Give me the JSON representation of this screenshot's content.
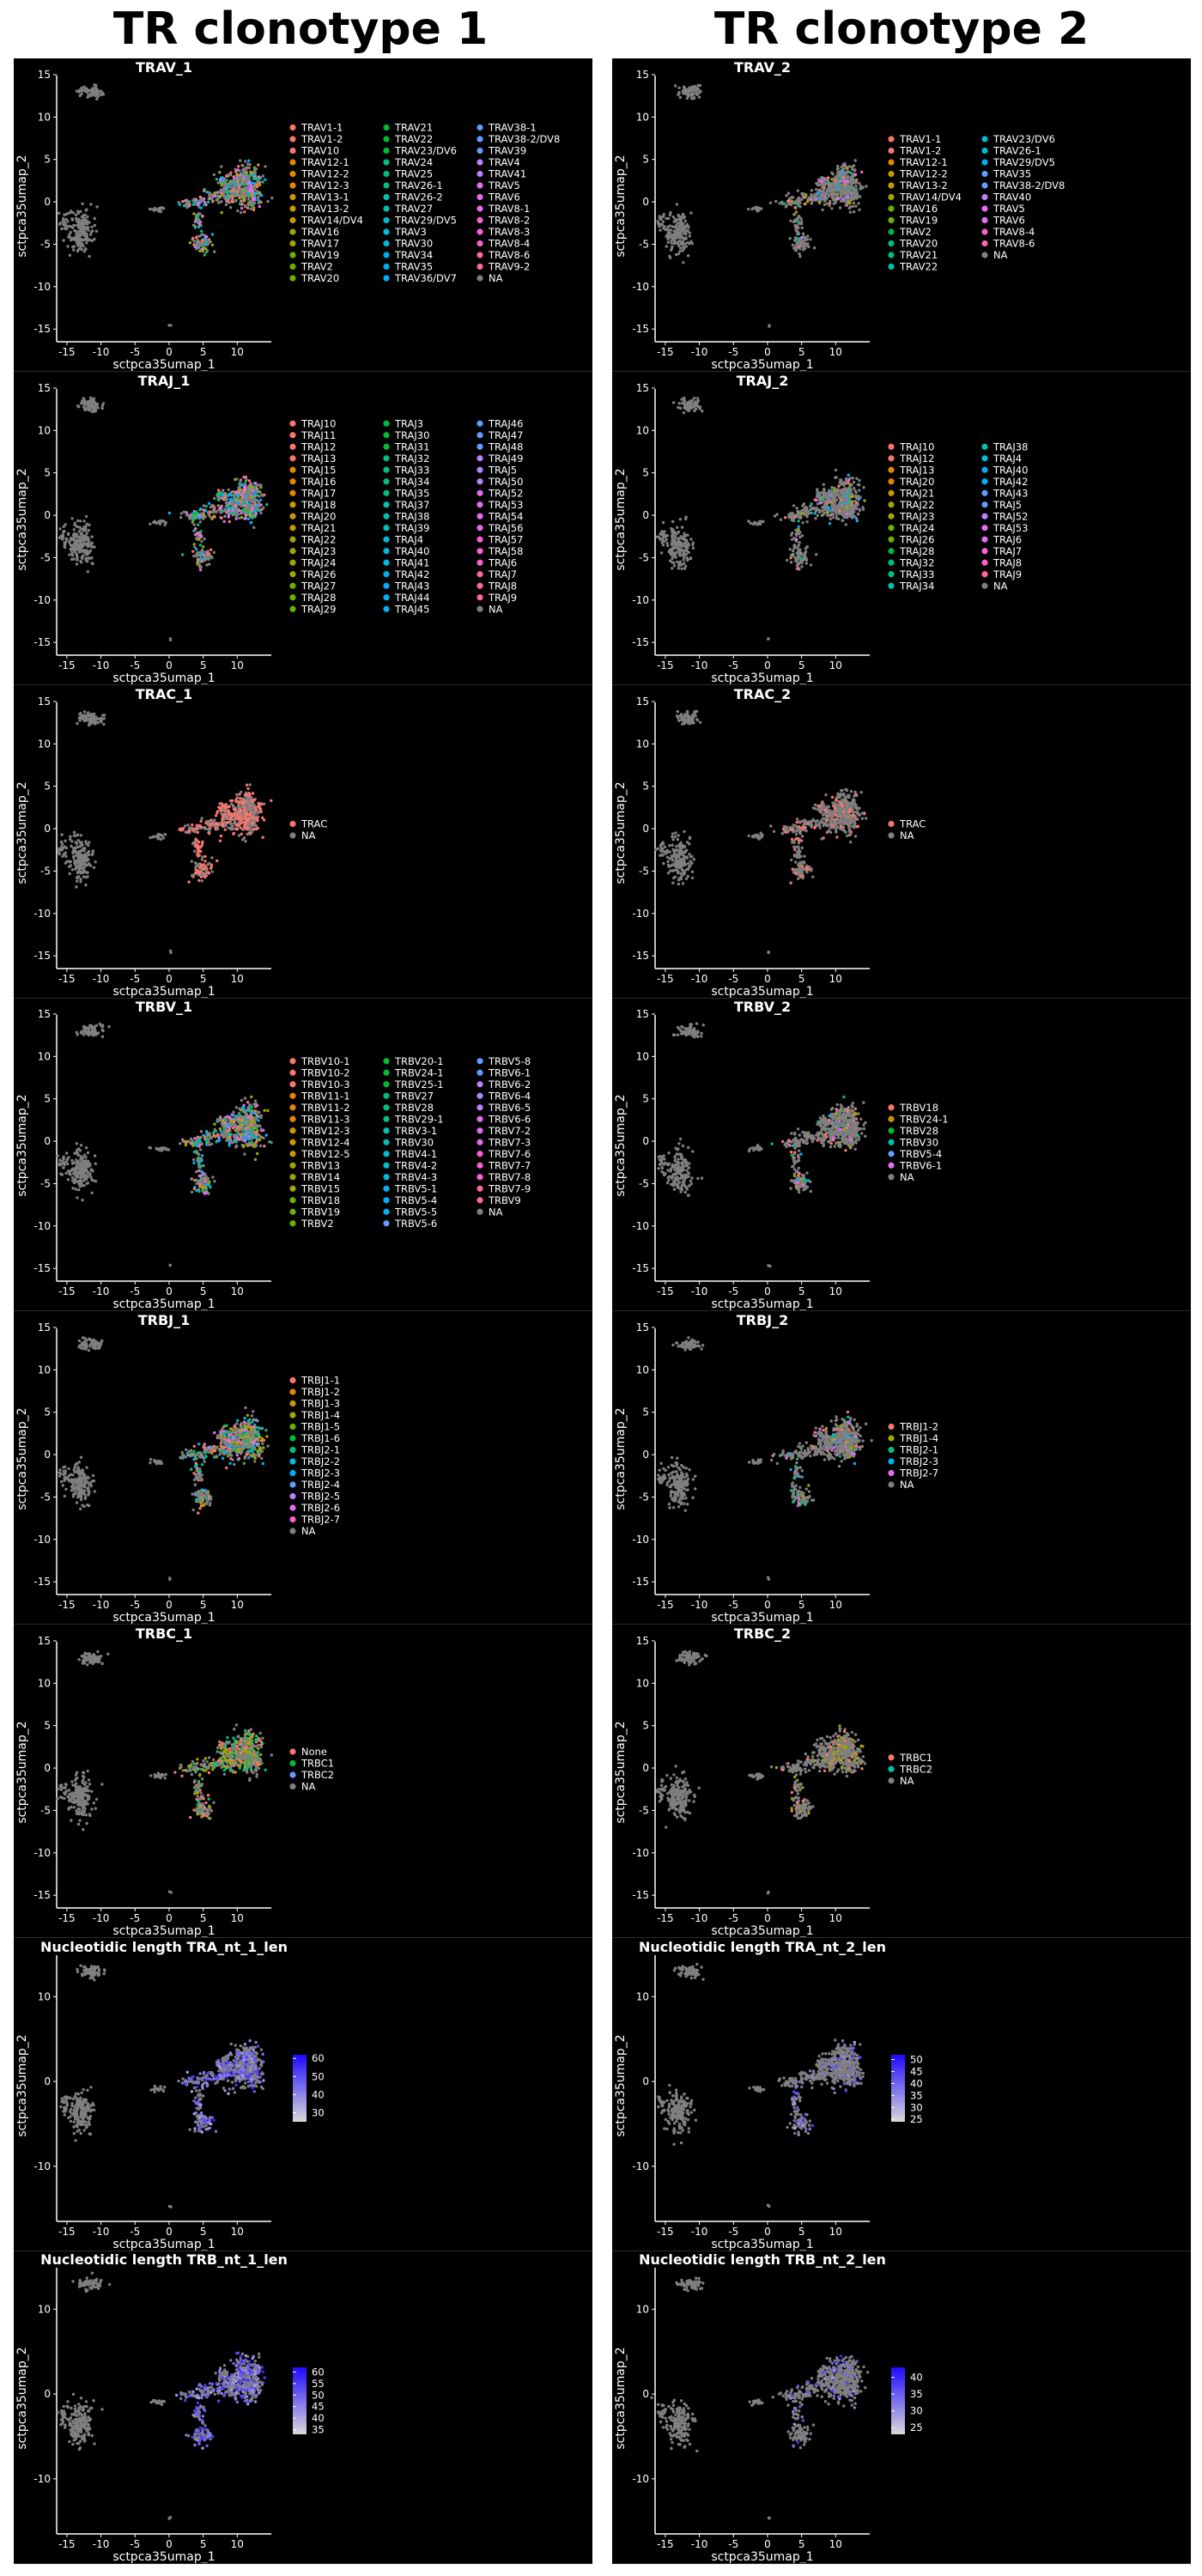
{
  "columns": [
    {
      "title": "TR clonotype 1"
    },
    {
      "title": "TR clonotype 2"
    }
  ],
  "chart_data": [
    {
      "type": "scatter",
      "column": 0,
      "title": "TRAV_1",
      "xlabel": "sctpca35umap_1",
      "ylabel": "sctpca35umap_2",
      "xticks": [
        -15,
        -10,
        -5,
        0,
        5,
        10
      ],
      "yticks": [
        15,
        10,
        5,
        0,
        -5,
        -10,
        -15
      ],
      "legend_position": "right",
      "color_by": "categorical",
      "na_color": "#7f7f7f",
      "categories": [
        "TRAV1-1",
        "TRAV1-2",
        "TRAV10",
        "TRAV12-1",
        "TRAV12-2",
        "TRAV12-3",
        "TRAV13-1",
        "TRAV13-2",
        "TRAV14/DV4",
        "TRAV16",
        "TRAV17",
        "TRAV19",
        "TRAV2",
        "TRAV20",
        "TRAV21",
        "TRAV22",
        "TRAV23/DV6",
        "TRAV24",
        "TRAV25",
        "TRAV26-1",
        "TRAV26-2",
        "TRAV27",
        "TRAV29/DV5",
        "TRAV3",
        "TRAV30",
        "TRAV34",
        "TRAV35",
        "TRAV36/DV7",
        "TRAV38-1",
        "TRAV38-2/DV8",
        "TRAV39",
        "TRAV4",
        "TRAV41",
        "TRAV5",
        "TRAV6",
        "TRAV8-1",
        "TRAV8-2",
        "TRAV8-3",
        "TRAV8-4",
        "TRAV8-6",
        "TRAV9-2",
        "NA"
      ],
      "legend_columns": 3
    },
    {
      "type": "scatter",
      "column": 1,
      "title": "TRAV_2",
      "xlabel": "sctpca35umap_1",
      "ylabel": "sctpca35umap_2",
      "xticks": [
        -15,
        -10,
        -5,
        0,
        5,
        10
      ],
      "yticks": [
        15,
        10,
        5,
        0,
        -5,
        -10,
        -15
      ],
      "legend_position": "right",
      "color_by": "categorical",
      "na_color": "#7f7f7f",
      "categories": [
        "TRAV1-1",
        "TRAV1-2",
        "TRAV12-1",
        "TRAV12-2",
        "TRAV13-2",
        "TRAV14/DV4",
        "TRAV16",
        "TRAV19",
        "TRAV2",
        "TRAV20",
        "TRAV21",
        "TRAV22",
        "TRAV23/DV6",
        "TRAV26-1",
        "TRAV29/DV5",
        "TRAV35",
        "TRAV38-2/DV8",
        "TRAV40",
        "TRAV5",
        "TRAV6",
        "TRAV8-4",
        "TRAV8-6",
        "NA"
      ],
      "legend_columns": 2
    },
    {
      "type": "scatter",
      "column": 0,
      "title": "TRAJ_1",
      "xlabel": "sctpca35umap_1",
      "ylabel": "sctpca35umap_2",
      "xticks": [
        -15,
        -10,
        -5,
        0,
        5,
        10
      ],
      "yticks": [
        15,
        10,
        5,
        0,
        -5,
        -10,
        -15
      ],
      "legend_position": "right",
      "color_by": "categorical",
      "na_color": "#7f7f7f",
      "categories": [
        "TRAJ10",
        "TRAJ11",
        "TRAJ12",
        "TRAJ13",
        "TRAJ15",
        "TRAJ16",
        "TRAJ17",
        "TRAJ18",
        "TRAJ20",
        "TRAJ21",
        "TRAJ22",
        "TRAJ23",
        "TRAJ24",
        "TRAJ26",
        "TRAJ27",
        "TRAJ28",
        "TRAJ29",
        "TRAJ3",
        "TRAJ30",
        "TRAJ31",
        "TRAJ32",
        "TRAJ33",
        "TRAJ34",
        "TRAJ35",
        "TRAJ37",
        "TRAJ38",
        "TRAJ39",
        "TRAJ4",
        "TRAJ40",
        "TRAJ41",
        "TRAJ42",
        "TRAJ43",
        "TRAJ44",
        "TRAJ45",
        "TRAJ46",
        "TRAJ47",
        "TRAJ48",
        "TRAJ49",
        "TRAJ5",
        "TRAJ50",
        "TRAJ52",
        "TRAJ53",
        "TRAJ54",
        "TRAJ56",
        "TRAJ57",
        "TRAJ58",
        "TRAJ6",
        "TRAJ7",
        "TRAJ8",
        "TRAJ9",
        "NA"
      ],
      "legend_columns": 3
    },
    {
      "type": "scatter",
      "column": 1,
      "title": "TRAJ_2",
      "xlabel": "sctpca35umap_1",
      "ylabel": "sctpca35umap_2",
      "xticks": [
        -15,
        -10,
        -5,
        0,
        5,
        10
      ],
      "yticks": [
        15,
        10,
        5,
        0,
        -5,
        -10,
        -15
      ],
      "legend_position": "right",
      "color_by": "categorical",
      "na_color": "#7f7f7f",
      "categories": [
        "TRAJ10",
        "TRAJ12",
        "TRAJ13",
        "TRAJ20",
        "TRAJ21",
        "TRAJ22",
        "TRAJ23",
        "TRAJ24",
        "TRAJ26",
        "TRAJ28",
        "TRAJ32",
        "TRAJ33",
        "TRAJ34",
        "TRAJ38",
        "TRAJ4",
        "TRAJ40",
        "TRAJ42",
        "TRAJ43",
        "TRAJ5",
        "TRAJ52",
        "TRAJ53",
        "TRAJ6",
        "TRAJ7",
        "TRAJ8",
        "TRAJ9",
        "NA"
      ],
      "legend_columns": 2
    },
    {
      "type": "scatter",
      "column": 0,
      "title": "TRAC_1",
      "xlabel": "sctpca35umap_1",
      "ylabel": "sctpca35umap_2",
      "xticks": [
        -15,
        -10,
        -5,
        0,
        5,
        10
      ],
      "yticks": [
        15,
        10,
        5,
        0,
        -5,
        -10,
        -15
      ],
      "legend_position": "right",
      "color_by": "categorical",
      "na_color": "#7f7f7f",
      "categories": [
        "TRAC",
        "NA"
      ],
      "legend_columns": 1
    },
    {
      "type": "scatter",
      "column": 1,
      "title": "TRAC_2",
      "xlabel": "sctpca35umap_1",
      "ylabel": "sctpca35umap_2",
      "xticks": [
        -15,
        -10,
        -5,
        0,
        5,
        10
      ],
      "yticks": [
        15,
        10,
        5,
        0,
        -5,
        -10,
        -15
      ],
      "legend_position": "right",
      "color_by": "categorical",
      "na_color": "#7f7f7f",
      "categories": [
        "TRAC",
        "NA"
      ],
      "legend_columns": 1
    },
    {
      "type": "scatter",
      "column": 0,
      "title": "TRBV_1",
      "xlabel": "sctpca35umap_1",
      "ylabel": "sctpca35umap_2",
      "xticks": [
        -15,
        -10,
        -5,
        0,
        5,
        10
      ],
      "yticks": [
        15,
        10,
        5,
        0,
        -5,
        -10,
        -15
      ],
      "legend_position": "right",
      "color_by": "categorical",
      "na_color": "#7f7f7f",
      "categories": [
        "TRBV10-1",
        "TRBV10-2",
        "TRBV10-3",
        "TRBV11-1",
        "TRBV11-2",
        "TRBV11-3",
        "TRBV12-3",
        "TRBV12-4",
        "TRBV12-5",
        "TRBV13",
        "TRBV14",
        "TRBV15",
        "TRBV18",
        "TRBV19",
        "TRBV2",
        "TRBV20-1",
        "TRBV24-1",
        "TRBV25-1",
        "TRBV27",
        "TRBV28",
        "TRBV29-1",
        "TRBV3-1",
        "TRBV30",
        "TRBV4-1",
        "TRBV4-2",
        "TRBV4-3",
        "TRBV5-1",
        "TRBV5-4",
        "TRBV5-5",
        "TRBV5-6",
        "TRBV5-8",
        "TRBV6-1",
        "TRBV6-2",
        "TRBV6-4",
        "TRBV6-5",
        "TRBV6-6",
        "TRBV7-2",
        "TRBV7-3",
        "TRBV7-6",
        "TRBV7-7",
        "TRBV7-8",
        "TRBV7-9",
        "TRBV9",
        "NA"
      ],
      "legend_columns": 3
    },
    {
      "type": "scatter",
      "column": 1,
      "title": "TRBV_2",
      "xlabel": "sctpca35umap_1",
      "ylabel": "sctpca35umap_2",
      "xticks": [
        -15,
        -10,
        -5,
        0,
        5,
        10
      ],
      "yticks": [
        15,
        10,
        5,
        0,
        -5,
        -10,
        -15
      ],
      "legend_position": "right",
      "color_by": "categorical",
      "na_color": "#7f7f7f",
      "categories": [
        "TRBV18",
        "TRBV24-1",
        "TRBV28",
        "TRBV30",
        "TRBV5-4",
        "TRBV6-1",
        "NA"
      ],
      "legend_columns": 1
    },
    {
      "type": "scatter",
      "column": 0,
      "title": "TRBJ_1",
      "xlabel": "sctpca35umap_1",
      "ylabel": "sctpca35umap_2",
      "xticks": [
        -15,
        -10,
        -5,
        0,
        5,
        10
      ],
      "yticks": [
        15,
        10,
        5,
        0,
        -5,
        -10,
        -15
      ],
      "legend_position": "right",
      "color_by": "categorical",
      "na_color": "#7f7f7f",
      "categories": [
        "TRBJ1-1",
        "TRBJ1-2",
        "TRBJ1-3",
        "TRBJ1-4",
        "TRBJ1-5",
        "TRBJ1-6",
        "TRBJ2-1",
        "TRBJ2-2",
        "TRBJ2-3",
        "TRBJ2-4",
        "TRBJ2-5",
        "TRBJ2-6",
        "TRBJ2-7",
        "NA"
      ],
      "legend_columns": 1
    },
    {
      "type": "scatter",
      "column": 1,
      "title": "TRBJ_2",
      "xlabel": "sctpca35umap_1",
      "ylabel": "sctpca35umap_2",
      "xticks": [
        -15,
        -10,
        -5,
        0,
        5,
        10
      ],
      "yticks": [
        15,
        10,
        5,
        0,
        -5,
        -10,
        -15
      ],
      "legend_position": "right",
      "color_by": "categorical",
      "na_color": "#7f7f7f",
      "categories": [
        "TRBJ1-2",
        "TRBJ1-4",
        "TRBJ2-1",
        "TRBJ2-3",
        "TRBJ2-7",
        "NA"
      ],
      "legend_columns": 1
    },
    {
      "type": "scatter",
      "column": 0,
      "title": "TRBC_1",
      "xlabel": "sctpca35umap_1",
      "ylabel": "sctpca35umap_2",
      "xticks": [
        -15,
        -10,
        -5,
        0,
        5,
        10
      ],
      "yticks": [
        15,
        10,
        5,
        0,
        -5,
        -10,
        -15
      ],
      "legend_position": "right",
      "color_by": "categorical",
      "na_color": "#7f7f7f",
      "categories": [
        "None",
        "TRBC1",
        "TRBC2",
        "NA"
      ],
      "legend_columns": 1
    },
    {
      "type": "scatter",
      "column": 1,
      "title": "TRBC_2",
      "xlabel": "sctpca35umap_1",
      "ylabel": "sctpca35umap_2",
      "xticks": [
        -15,
        -10,
        -5,
        0,
        5,
        10
      ],
      "yticks": [
        15,
        10,
        5,
        0,
        -5,
        -10,
        -15
      ],
      "legend_position": "right",
      "color_by": "categorical",
      "na_color": "#7f7f7f",
      "categories": [
        "TRBC1",
        "TRBC2",
        "NA"
      ],
      "legend_columns": 1
    },
    {
      "type": "scatter",
      "column": 0,
      "title": "Nucleotidic length TRA_nt_1_len",
      "xlabel": "sctpca35umap_1",
      "ylabel": "sctpca35umap_2",
      "xticks": [
        -15,
        -10,
        -5,
        0,
        5,
        10
      ],
      "yticks": [
        10,
        0,
        -10
      ],
      "legend_position": "right",
      "color_by": "continuous",
      "na_color": "#7f7f7f",
      "colorbar_ticks": [
        60,
        50,
        40,
        30
      ],
      "colorbar_range": [
        25,
        62
      ],
      "colorbar_colors": [
        "#d9d9d9",
        "#1f0aff"
      ]
    },
    {
      "type": "scatter",
      "column": 1,
      "title": "Nucleotidic length TRA_nt_2_len",
      "xlabel": "sctpca35umap_1",
      "ylabel": "sctpca35umap_2",
      "xticks": [
        -15,
        -10,
        -5,
        0,
        5,
        10
      ],
      "yticks": [
        10,
        0,
        -10
      ],
      "legend_position": "right",
      "color_by": "continuous",
      "na_color": "#7f7f7f",
      "colorbar_ticks": [
        50,
        45,
        40,
        35,
        30,
        25
      ],
      "colorbar_range": [
        24,
        52
      ],
      "colorbar_colors": [
        "#d9d9d9",
        "#1f0aff"
      ]
    },
    {
      "type": "scatter",
      "column": 0,
      "title": "Nucleotidic length TRB_nt_1_len",
      "xlabel": "sctpca35umap_1",
      "ylabel": "sctpca35umap_2",
      "xticks": [
        -15,
        -10,
        -5,
        0,
        5,
        10
      ],
      "yticks": [
        10,
        0,
        -10
      ],
      "legend_position": "right",
      "color_by": "continuous",
      "na_color": "#7f7f7f",
      "colorbar_ticks": [
        60,
        55,
        50,
        45,
        40,
        35
      ],
      "colorbar_range": [
        33,
        62
      ],
      "colorbar_colors": [
        "#d9d9d9",
        "#1f0aff"
      ]
    },
    {
      "type": "scatter",
      "column": 1,
      "title": "Nucleotidic length TRB_nt_2_len",
      "xlabel": "sctpca35umap_1",
      "ylabel": "sctpca35umap_2",
      "xticks": [
        -15,
        -10,
        -5,
        0,
        5,
        10
      ],
      "yticks": [
        10,
        0,
        -10
      ],
      "legend_position": "right",
      "color_by": "continuous",
      "na_color": "#7f7f7f",
      "colorbar_ticks": [
        40,
        35,
        30,
        25
      ],
      "colorbar_range": [
        23,
        43
      ],
      "colorbar_colors": [
        "#d9d9d9",
        "#1f0aff"
      ]
    }
  ]
}
